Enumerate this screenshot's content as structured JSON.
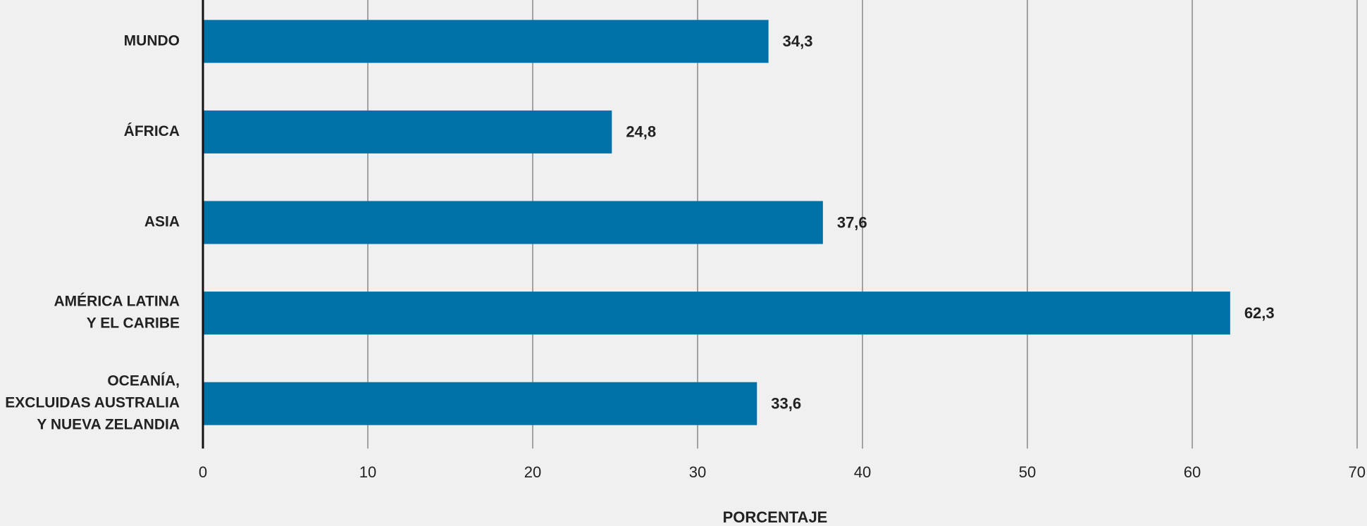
{
  "chart_data": {
    "type": "bar",
    "orientation": "horizontal",
    "categories": [
      "MUNDO",
      "ÁFRICA",
      "ASIA",
      "AMÉRICA LATINA\nY EL CARIBE",
      "OCEANÍA,\nEXCLUIDAS AUSTRALIA\nY NUEVA ZELANDIA"
    ],
    "values": [
      34.3,
      24.8,
      37.6,
      62.3,
      33.6
    ],
    "value_labels": [
      "34,3",
      "24,8",
      "37,6",
      "62,3",
      "33,6"
    ],
    "color": "#0072a8",
    "xlabel": "PORCENTAJE",
    "xlim": [
      0,
      70
    ],
    "xticks": [
      0,
      10,
      20,
      30,
      40,
      50,
      60,
      70
    ],
    "grid": true
  }
}
